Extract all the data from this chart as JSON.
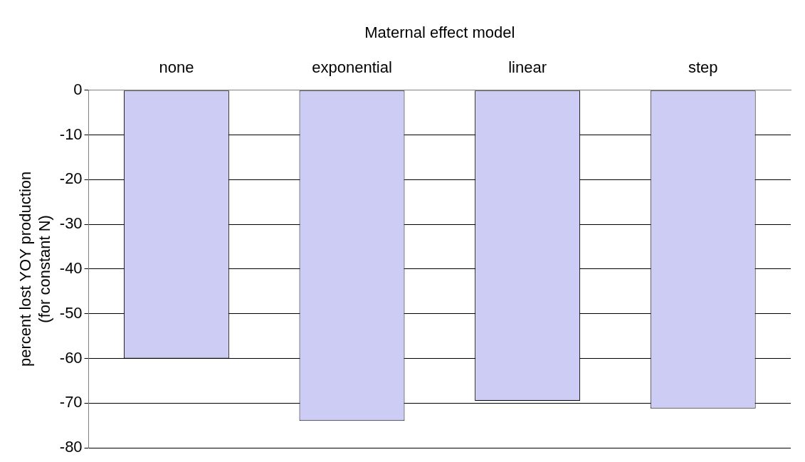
{
  "chart_data": {
    "type": "bar",
    "xlabel": "Maternal effect model",
    "ylabel": "percent lost YOY production\n(for constant N)",
    "categories": [
      "none",
      "exponential",
      "linear",
      "step"
    ],
    "values": [
      -60,
      -74,
      -69.5,
      -71.2
    ],
    "color": "#ccccf4",
    "ylim": [
      -80,
      0
    ],
    "yticks": [
      -80,
      -70,
      -60,
      -50,
      -40,
      -30,
      -20,
      -10,
      0
    ],
    "grid": "y"
  }
}
